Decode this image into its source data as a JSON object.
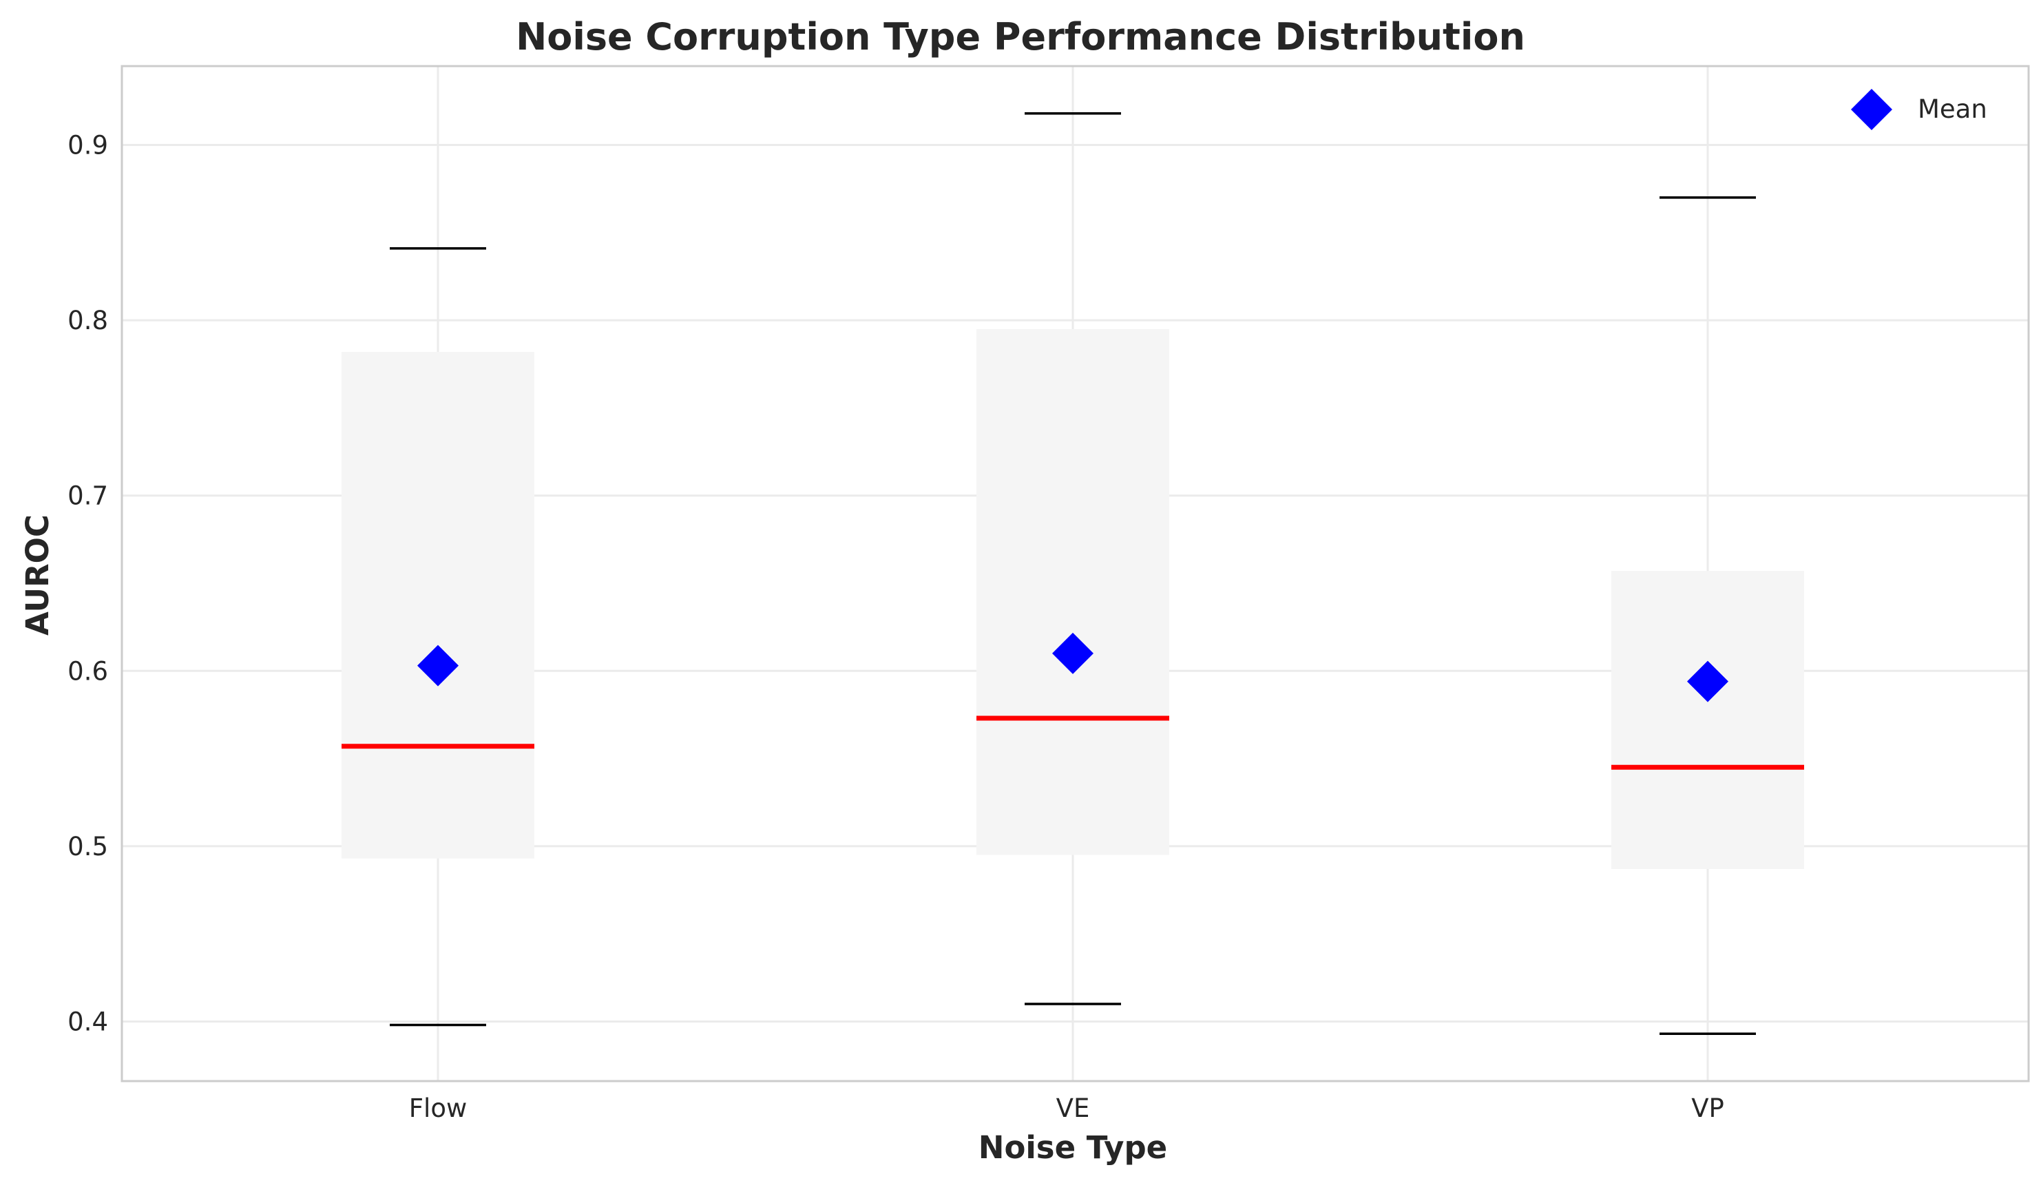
{
  "chart_data": {
    "type": "box",
    "title": "Noise Corruption Type Performance Distribution",
    "xlabel": "Noise Type",
    "ylabel": "AUROC",
    "categories": [
      "Flow",
      "VE",
      "VP"
    ],
    "boxes": [
      {
        "category": "Flow",
        "whisker_low": 0.398,
        "q1": 0.493,
        "median": 0.557,
        "q3": 0.782,
        "whisker_high": 0.841,
        "mean": 0.603
      },
      {
        "category": "VE",
        "whisker_low": 0.41,
        "q1": 0.495,
        "median": 0.573,
        "q3": 0.795,
        "whisker_high": 0.918,
        "mean": 0.61
      },
      {
        "category": "VP",
        "whisker_low": 0.393,
        "q1": 0.487,
        "median": 0.545,
        "q3": 0.657,
        "whisker_high": 0.87,
        "mean": 0.594
      }
    ],
    "ylim": [
      0.366,
      0.945
    ],
    "yticks": [
      0.4,
      0.5,
      0.6,
      0.7,
      0.8,
      0.9
    ],
    "ytick_labels": [
      "0.4",
      "0.5",
      "0.6",
      "0.7",
      "0.8",
      "0.9"
    ],
    "grid": true,
    "legend": {
      "position": "top-right",
      "entries": [
        {
          "label": "Mean",
          "marker": "diamond",
          "color": "#0000ff"
        }
      ]
    },
    "colors": {
      "box_fill": "#f5f5f5",
      "median": "#ff0000",
      "mean": "#0000ff",
      "whisker_cap": "#000000",
      "grid": "#ebebeb",
      "frame": "#cccccc"
    }
  }
}
